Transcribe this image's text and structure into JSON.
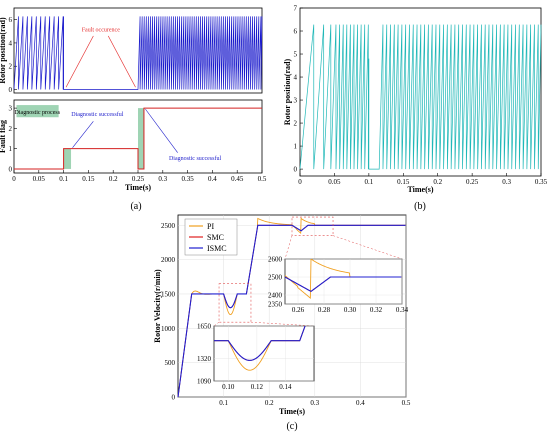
{
  "chart_data": [
    {
      "id": "a",
      "panel_label": "(a)",
      "type": "line",
      "subplots": [
        {
          "ylabel": "Rotor position(rad)",
          "xlim": [
            0,
            0.5
          ],
          "ylim": [
            -0.3,
            7
          ],
          "yticks": [
            "0",
            "2",
            "4",
            "6"
          ],
          "series": [
            {
              "color": "#1a1acc",
              "sawtooth_segments": [
                {
                  "x0": 0.0,
                  "x1": 0.1,
                  "period": 0.009,
                  "peak": 6.28
                },
                {
                  "x0": 0.25,
                  "x1": 0.5,
                  "period": 0.0042,
                  "peak": 6.28
                }
              ],
              "zero_segment": [
                0.1,
                0.25
              ]
            }
          ],
          "annotation": {
            "text": "Fault occurence",
            "color": "#e53030"
          }
        },
        {
          "ylabel": "Fault flag",
          "xlabel": "Time(s)",
          "xlim": [
            0,
            0.5
          ],
          "ylim": [
            -0.2,
            3.4
          ],
          "yticks": [
            "0",
            "1",
            "2",
            "3"
          ],
          "xticks": [
            "0",
            "0.05",
            "0.1",
            "0.15",
            "0.2",
            "0.25",
            "0.3",
            "0.35",
            "0.4",
            "0.45",
            "0.5"
          ],
          "series": [
            {
              "color": "#d42020",
              "steps": [
                [
                  0,
                  0
                ],
                [
                  0.1,
                  0
                ],
                [
                  0.1,
                  1
                ],
                [
                  0.25,
                  1
                ],
                [
                  0.25,
                  0
                ],
                [
                  0.262,
                  0
                ],
                [
                  0.262,
                  3
                ],
                [
                  0.5,
                  3
                ]
              ]
            }
          ],
          "annotations": [
            {
              "text": "Diagnostic process",
              "color": "#000000"
            },
            {
              "text": "Diagnostic successful",
              "color": "#2222cc"
            },
            {
              "text": "Diagnostic successful",
              "color": "#2222cc"
            }
          ]
        }
      ]
    },
    {
      "id": "b",
      "panel_label": "(b)",
      "type": "line",
      "ylabel": "Rotor position(rad)",
      "xlabel": "Time(s)",
      "xlim": [
        0,
        0.35
      ],
      "ylim": [
        -0.3,
        7
      ],
      "yticks": [
        "0",
        "1",
        "2",
        "3",
        "4",
        "5",
        "6",
        "7"
      ],
      "xticks": [
        "0",
        "0.05",
        "0.1",
        "0.15",
        "0.2",
        "0.25",
        "0.3",
        "0.35"
      ],
      "series": [
        {
          "color": "#20b8b8"
        }
      ]
    },
    {
      "id": "c",
      "panel_label": "(c)",
      "type": "line",
      "ylabel": "Rotor Velocity(r/min)",
      "xlabel": "Time(s)",
      "xlim": [
        0,
        0.5
      ],
      "ylim": [
        0,
        2650
      ],
      "yticks": [
        "0",
        "500",
        "1000",
        "1500",
        "2000",
        "2500"
      ],
      "xticks": [
        "0.1",
        "0.2",
        "0.3",
        "0.4",
        "0.5"
      ],
      "legend": {
        "position": "top-left",
        "entries": [
          "PI",
          "SMC",
          "ISMC"
        ]
      },
      "series": [
        {
          "name": "PI",
          "color": "#f0a020"
        },
        {
          "name": "SMC",
          "color": "#e02020"
        },
        {
          "name": "ISMC",
          "color": "#2020d0"
        }
      ],
      "insets": [
        {
          "xlim": [
            0.25,
            0.34
          ],
          "ylim": [
            2350,
            2600
          ],
          "xticks": [
            "0.26",
            "0.28",
            "0.30",
            "0.32",
            "0.34"
          ],
          "yticks": [
            "2350",
            "2400",
            "2500",
            "2600"
          ]
        },
        {
          "xlim": [
            0.09,
            0.16
          ],
          "ylim": [
            1090,
            1650
          ],
          "xticks": [
            "0.10",
            "0.12",
            "0.14"
          ],
          "yticks": [
            "1090",
            "1320",
            "1650"
          ]
        }
      ]
    }
  ]
}
